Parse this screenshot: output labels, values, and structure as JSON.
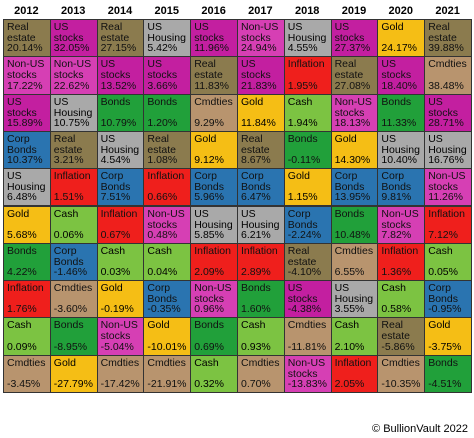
{
  "chart_data": {
    "type": "table",
    "years": [
      "2012",
      "2013",
      "2014",
      "2015",
      "2016",
      "2017",
      "2018",
      "2019",
      "2020",
      "2021"
    ],
    "assets": {
      "Real estate": "#8b7b4e",
      "Non-US stocks": "#d63fb4",
      "US stocks": "#c31fa0",
      "US Housing": "#a9a9a9",
      "Corp Bonds": "#2a74b0",
      "Bonds": "#21a03a",
      "Cash": "#7cc342",
      "Gold": "#f5be15",
      "Inflation": "#ef1f1c",
      "Cmdties": "#b8946e"
    },
    "columns": [
      [
        {
          "asset": "Real estate",
          "label": "Real\nestate",
          "value": "20.14%"
        },
        {
          "asset": "Non-US stocks",
          "label": "Non-US\nstocks",
          "value": "17.22%"
        },
        {
          "asset": "US stocks",
          "label": "US\nstocks",
          "value": "15.89%"
        },
        {
          "asset": "Corp Bonds",
          "label": "Corp\nBonds",
          "value": "10.37%"
        },
        {
          "asset": "US Housing",
          "label": "US\nHousing",
          "value": "6.48%"
        },
        {
          "asset": "Gold",
          "label": "Gold",
          "value": "5.68%"
        },
        {
          "asset": "Bonds",
          "label": "Bonds",
          "value": "4.22%"
        },
        {
          "asset": "Inflation",
          "label": "Inflation",
          "value": "1.76%"
        },
        {
          "asset": "Cash",
          "label": "Cash",
          "value": "0.09%"
        },
        {
          "asset": "Cmdties",
          "label": "Cmdties",
          "value": "-3.45%"
        }
      ],
      [
        {
          "asset": "US stocks",
          "label": "US\nstocks",
          "value": "32.05%"
        },
        {
          "asset": "Non-US stocks",
          "label": "Non-US\nstocks",
          "value": "22.62%"
        },
        {
          "asset": "US Housing",
          "label": "US\nHousing",
          "value": "10.75%"
        },
        {
          "asset": "Real estate",
          "label": "Real\nestate",
          "value": "3.21%"
        },
        {
          "asset": "Inflation",
          "label": "Inflation",
          "value": "1.51%"
        },
        {
          "asset": "Cash",
          "label": "Cash",
          "value": "0.06%"
        },
        {
          "asset": "Corp Bonds",
          "label": "Corp\nBonds",
          "value": "-1.46%"
        },
        {
          "asset": "Cmdties",
          "label": "Cmdties",
          "value": "-3.60%"
        },
        {
          "asset": "Bonds",
          "label": "Bonds",
          "value": "-8.95%"
        },
        {
          "asset": "Gold",
          "label": "Gold",
          "value": "-27.79%"
        }
      ],
      [
        {
          "asset": "Real estate",
          "label": "Real\nestate",
          "value": "27.15%"
        },
        {
          "asset": "US stocks",
          "label": "US\nstocks",
          "value": "13.52%"
        },
        {
          "asset": "Bonds",
          "label": "Bonds",
          "value": "10.79%"
        },
        {
          "asset": "US Housing",
          "label": "US\nHousing",
          "value": "4.54%"
        },
        {
          "asset": "Corp Bonds",
          "label": "Corp\nBonds",
          "value": "7.51%"
        },
        {
          "asset": "Inflation",
          "label": "Inflation",
          "value": "0.67%"
        },
        {
          "asset": "Cash",
          "label": "Cash",
          "value": "0.03%"
        },
        {
          "asset": "Gold",
          "label": "Gold",
          "value": "-0.19%"
        },
        {
          "asset": "Non-US stocks",
          "label": "Non-US\nstocks",
          "value": "-5.04%"
        },
        {
          "asset": "Cmdties",
          "label": "Cmdties",
          "value": "-17.42%"
        }
      ],
      [
        {
          "asset": "US Housing",
          "label": "US\nHousing",
          "value": "5.42%"
        },
        {
          "asset": "US stocks",
          "label": "US\nstocks",
          "value": "3.66%"
        },
        {
          "asset": "Bonds",
          "label": "Bonds",
          "value": "1.20%"
        },
        {
          "asset": "Real estate",
          "label": "Real\nestate",
          "value": "1.08%"
        },
        {
          "asset": "Inflation",
          "label": "Inflation",
          "value": "0.66%"
        },
        {
          "asset": "Non-US stocks",
          "label": "Non-US\nstocks",
          "value": "0.48%"
        },
        {
          "asset": "Cash",
          "label": "Cash",
          "value": "0.04%"
        },
        {
          "asset": "Corp Bonds",
          "label": "Corp\nBonds",
          "value": "-0.35%"
        },
        {
          "asset": "Gold",
          "label": "Gold",
          "value": "-10.01%"
        },
        {
          "asset": "Cmdties",
          "label": "Cmdties",
          "value": "-21.91%"
        }
      ],
      [
        {
          "asset": "US stocks",
          "label": "US\nstocks",
          "value": "11.96%"
        },
        {
          "asset": "Real estate",
          "label": "Real\nestate",
          "value": "11.83%"
        },
        {
          "asset": "Cmdties",
          "label": "Cmdties",
          "value": "9.29%"
        },
        {
          "asset": "Gold",
          "label": "Gold",
          "value": "9.12%"
        },
        {
          "asset": "Corp Bonds",
          "label": "Corp\nBonds",
          "value": "5.96%"
        },
        {
          "asset": "US Housing",
          "label": "US\nHousing",
          "value": "5.85%"
        },
        {
          "asset": "Inflation",
          "label": "Inflation",
          "value": "2.09%"
        },
        {
          "asset": "Non-US stocks",
          "label": "Non-US\nstocks",
          "value": "0.96%"
        },
        {
          "asset": "Bonds",
          "label": "Bonds",
          "value": "0.69%"
        },
        {
          "asset": "Cash",
          "label": "Cash",
          "value": "0.32%"
        }
      ],
      [
        {
          "asset": "Non-US stocks",
          "label": "Non-US\nstocks",
          "value": "24.94%"
        },
        {
          "asset": "US stocks",
          "label": "US\nstocks",
          "value": "21.83%"
        },
        {
          "asset": "Gold",
          "label": "Gold",
          "value": "11.84%"
        },
        {
          "asset": "Real estate",
          "label": "Real\nestate",
          "value": "8.67%"
        },
        {
          "asset": "Corp Bonds",
          "label": "Corp\nBonds",
          "value": "6.47%"
        },
        {
          "asset": "US Housing",
          "label": "US\nHousing",
          "value": "6.21%"
        },
        {
          "asset": "Inflation",
          "label": "Inflation",
          "value": "2.89%"
        },
        {
          "asset": "Bonds",
          "label": "Bonds",
          "value": "1.60%"
        },
        {
          "asset": "Cash",
          "label": "Cash",
          "value": "0.93%"
        },
        {
          "asset": "Cmdties",
          "label": "Cmdties",
          "value": "0.70%"
        }
      ],
      [
        {
          "asset": "US Housing",
          "label": "US\nHousing",
          "value": "4.55%"
        },
        {
          "asset": "Inflation",
          "label": "Inflation",
          "value": "1.95%"
        },
        {
          "asset": "Cash",
          "label": "Cash",
          "value": "1.94%"
        },
        {
          "asset": "Bonds",
          "label": "Bonds",
          "value": "-0.11%"
        },
        {
          "asset": "Gold",
          "label": "Gold",
          "value": "1.15%"
        },
        {
          "asset": "Corp Bonds",
          "label": "Corp\nBonds",
          "value": "-2.24%"
        },
        {
          "asset": "Real estate",
          "label": "Real\nestate",
          "value": "-4.10%"
        },
        {
          "asset": "US stocks",
          "label": "US\nstocks",
          "value": "-4.38%"
        },
        {
          "asset": "Cmdties",
          "label": "Cmdties",
          "value": "-11.81%"
        },
        {
          "asset": "Non-US stocks",
          "label": "Non-US\nstocks",
          "value": "-13.83%"
        }
      ],
      [
        {
          "asset": "US stocks",
          "label": "US\nstocks",
          "value": "27.37%"
        },
        {
          "asset": "Real estate",
          "label": "Real\nestate",
          "value": "27.08%"
        },
        {
          "asset": "Non-US stocks",
          "label": "Non-US\nstocks",
          "value": "18.13%"
        },
        {
          "asset": "Gold",
          "label": "Gold",
          "value": "14.30%"
        },
        {
          "asset": "Corp Bonds",
          "label": "Corp\nBonds",
          "value": "13.95%"
        },
        {
          "asset": "Bonds",
          "label": "Bonds",
          "value": "10.48%"
        },
        {
          "asset": "Cmdties",
          "label": "Cmdties",
          "value": "6.55%"
        },
        {
          "asset": "US Housing",
          "label": "US\nHousing",
          "value": "3.55%"
        },
        {
          "asset": "Cash",
          "label": "Cash",
          "value": "2.10%"
        },
        {
          "asset": "Inflation",
          "label": "Inflation",
          "value": "2.05%"
        }
      ],
      [
        {
          "asset": "Gold",
          "label": "Gold",
          "value": "24.17%"
        },
        {
          "asset": "US stocks",
          "label": "US\nstocks",
          "value": "18.40%"
        },
        {
          "asset": "Bonds",
          "label": "Bonds",
          "value": "11.33%"
        },
        {
          "asset": "US Housing",
          "label": "US\nHousing",
          "value": "10.40%"
        },
        {
          "asset": "Corp Bonds",
          "label": "Corp\nBonds",
          "value": "9.81%"
        },
        {
          "asset": "Non-US stocks",
          "label": "Non-US\nstocks",
          "value": "7.82%"
        },
        {
          "asset": "Inflation",
          "label": "Inflation",
          "value": "1.36%"
        },
        {
          "asset": "Cash",
          "label": "Cash",
          "value": "0.58%"
        },
        {
          "asset": "Real estate",
          "label": "Real\nestate",
          "value": "-5.86%"
        },
        {
          "asset": "Cmdties",
          "label": "Cmdties",
          "value": "-10.35%"
        }
      ],
      [
        {
          "asset": "Real estate",
          "label": "Real\nestate",
          "value": "39.88%"
        },
        {
          "asset": "Cmdties",
          "label": "Cmdties",
          "value": "38.48%"
        },
        {
          "asset": "US stocks",
          "label": "US\nstocks",
          "value": "28.71%"
        },
        {
          "asset": "US Housing",
          "label": "US\nHousing",
          "value": "16.76%"
        },
        {
          "asset": "Non-US stocks",
          "label": "Non-US\nstocks",
          "value": "11.26%"
        },
        {
          "asset": "Inflation",
          "label": "Inflation",
          "value": "7.12%"
        },
        {
          "asset": "Cash",
          "label": "Cash",
          "value": "0.05%"
        },
        {
          "asset": "Corp Bonds",
          "label": "Corp\nBonds",
          "value": "-0.95%"
        },
        {
          "asset": "Gold",
          "label": "Gold",
          "value": "-3.75%"
        },
        {
          "asset": "Bonds",
          "label": "Bonds",
          "value": "-4.51%"
        }
      ]
    ]
  },
  "credit": "© BullionVault 2022"
}
